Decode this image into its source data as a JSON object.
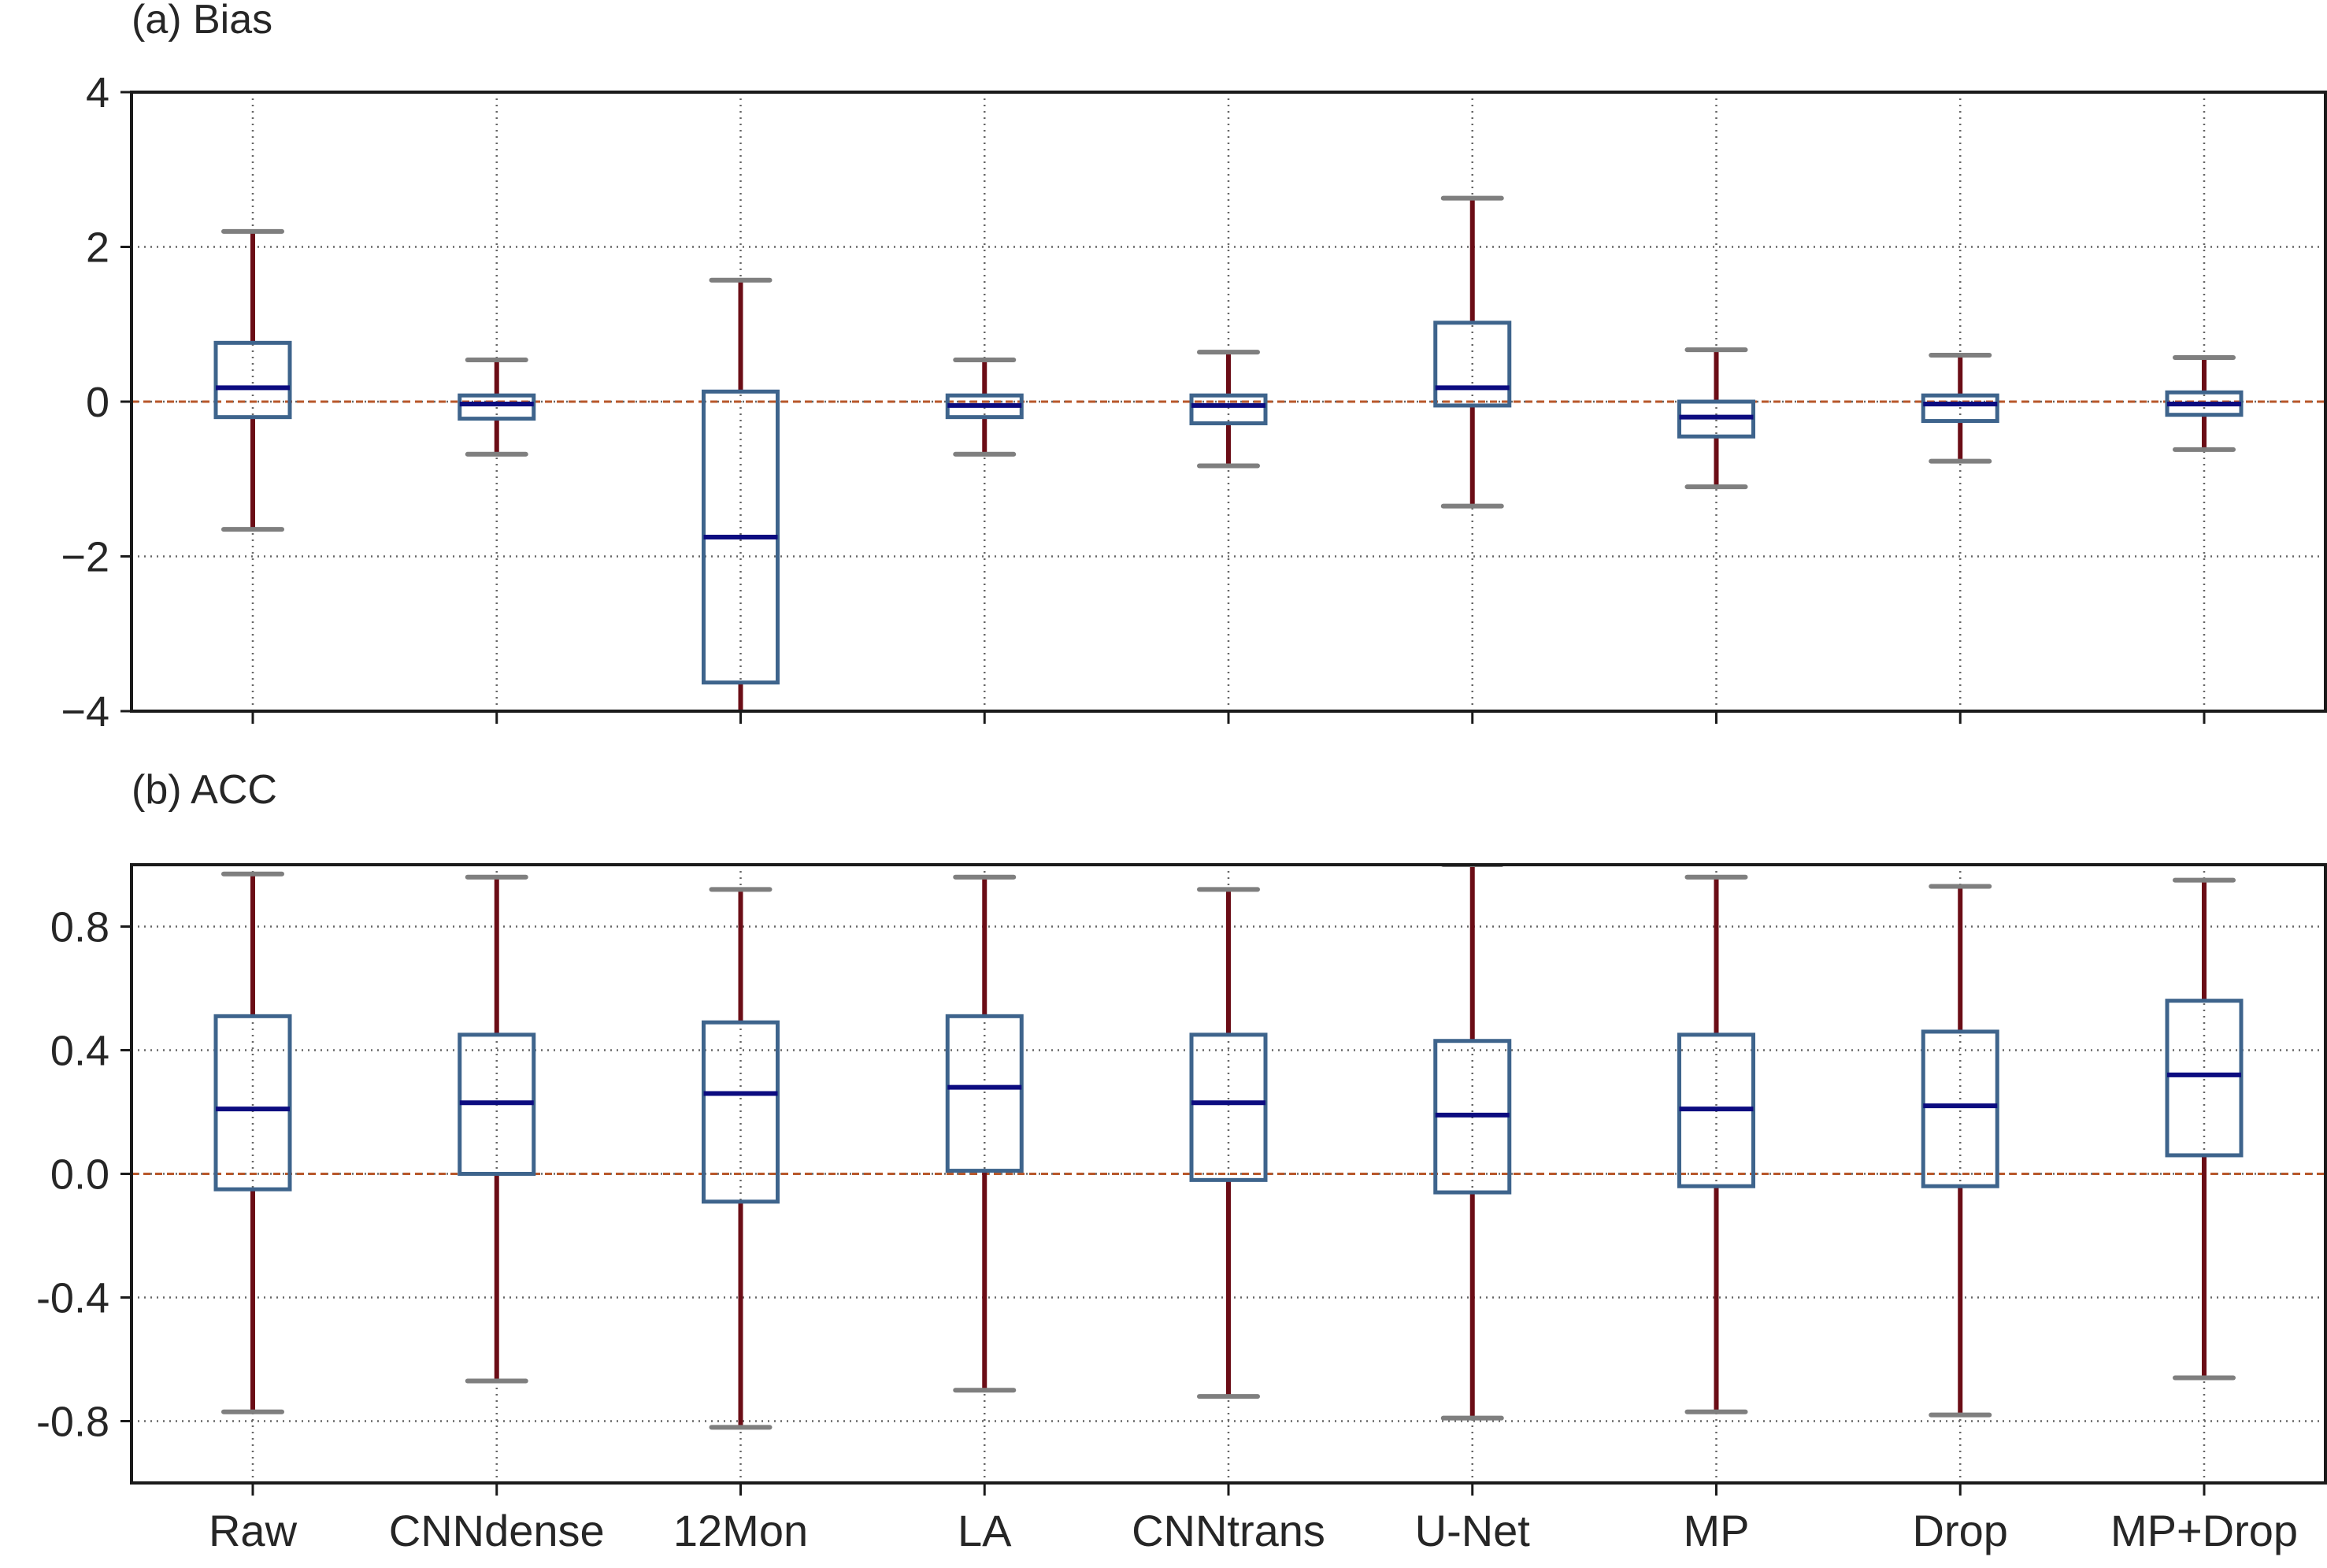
{
  "chart_data": [
    {
      "type": "boxplot",
      "title": "(a) Bias",
      "categories": [
        "Raw",
        "CNNdense",
        "12Mon",
        "LA",
        "CNNtrans",
        "U-Net",
        "MP",
        "Drop",
        "MP+Drop"
      ],
      "ylim": [
        -4,
        4
      ],
      "yticks": [
        4,
        2,
        0,
        -2,
        -4
      ],
      "ytick_labels": [
        "4",
        "2",
        "0",
        "−2",
        "−4"
      ],
      "grid": true,
      "reference_line": 0,
      "boxes": [
        {
          "whisker_low": -1.65,
          "q1": -0.2,
          "median": 0.18,
          "q3": 0.76,
          "whisker_high": 2.2
        },
        {
          "whisker_low": -0.68,
          "q1": -0.22,
          "median": -0.03,
          "q3": 0.08,
          "whisker_high": 0.54
        },
        {
          "whisker_low": -4.2,
          "q1": -3.63,
          "median": -1.75,
          "q3": 0.13,
          "whisker_high": 1.57
        },
        {
          "whisker_low": -0.68,
          "q1": -0.2,
          "median": -0.05,
          "q3": 0.08,
          "whisker_high": 0.54
        },
        {
          "whisker_low": -0.83,
          "q1": -0.28,
          "median": -0.05,
          "q3": 0.08,
          "whisker_high": 0.64
        },
        {
          "whisker_low": -1.35,
          "q1": -0.05,
          "median": 0.18,
          "q3": 1.02,
          "whisker_high": 2.63
        },
        {
          "whisker_low": -1.1,
          "q1": -0.45,
          "median": -0.2,
          "q3": 0.0,
          "whisker_high": 0.67
        },
        {
          "whisker_low": -0.77,
          "q1": -0.25,
          "median": -0.03,
          "q3": 0.08,
          "whisker_high": 0.6
        },
        {
          "whisker_low": -0.62,
          "q1": -0.17,
          "median": -0.03,
          "q3": 0.12,
          "whisker_high": 0.57
        }
      ]
    },
    {
      "type": "boxplot",
      "title": "(b) ACC",
      "categories": [
        "Raw",
        "CNNdense",
        "12Mon",
        "LA",
        "CNNtrans",
        "U-Net",
        "MP",
        "Drop",
        "MP+Drop"
      ],
      "ylim": [
        -1.0,
        1.0
      ],
      "yticks": [
        0.8,
        0.4,
        0.0,
        -0.4,
        -0.8
      ],
      "ytick_labels": [
        "0.8",
        "0.4",
        "0.0",
        "-0.4",
        "-0.8"
      ],
      "grid": true,
      "reference_line": 0,
      "boxes": [
        {
          "whisker_low": -0.77,
          "q1": -0.05,
          "median": 0.21,
          "q3": 0.51,
          "whisker_high": 0.97
        },
        {
          "whisker_low": -0.67,
          "q1": 0.0,
          "median": 0.23,
          "q3": 0.45,
          "whisker_high": 0.96
        },
        {
          "whisker_low": -0.82,
          "q1": -0.09,
          "median": 0.26,
          "q3": 0.49,
          "whisker_high": 0.92
        },
        {
          "whisker_low": -0.7,
          "q1": 0.01,
          "median": 0.28,
          "q3": 0.51,
          "whisker_high": 0.96
        },
        {
          "whisker_low": -0.72,
          "q1": -0.02,
          "median": 0.23,
          "q3": 0.45,
          "whisker_high": 0.92
        },
        {
          "whisker_low": -0.79,
          "q1": -0.06,
          "median": 0.19,
          "q3": 0.43,
          "whisker_high": 1.0
        },
        {
          "whisker_low": -0.77,
          "q1": -0.04,
          "median": 0.21,
          "q3": 0.45,
          "whisker_high": 0.96
        },
        {
          "whisker_low": -0.78,
          "q1": -0.04,
          "median": 0.22,
          "q3": 0.46,
          "whisker_high": 0.93
        },
        {
          "whisker_low": -0.66,
          "q1": 0.06,
          "median": 0.32,
          "q3": 0.56,
          "whisker_high": 0.95
        }
      ]
    }
  ],
  "colors": {
    "box": "#3e648c",
    "median": "#0c0c80",
    "whisker": "#6b0d16",
    "cap": "#7f7f7f",
    "zero_line": "#b8572a",
    "grid": "#666666",
    "axis": "#1a1a1a"
  }
}
